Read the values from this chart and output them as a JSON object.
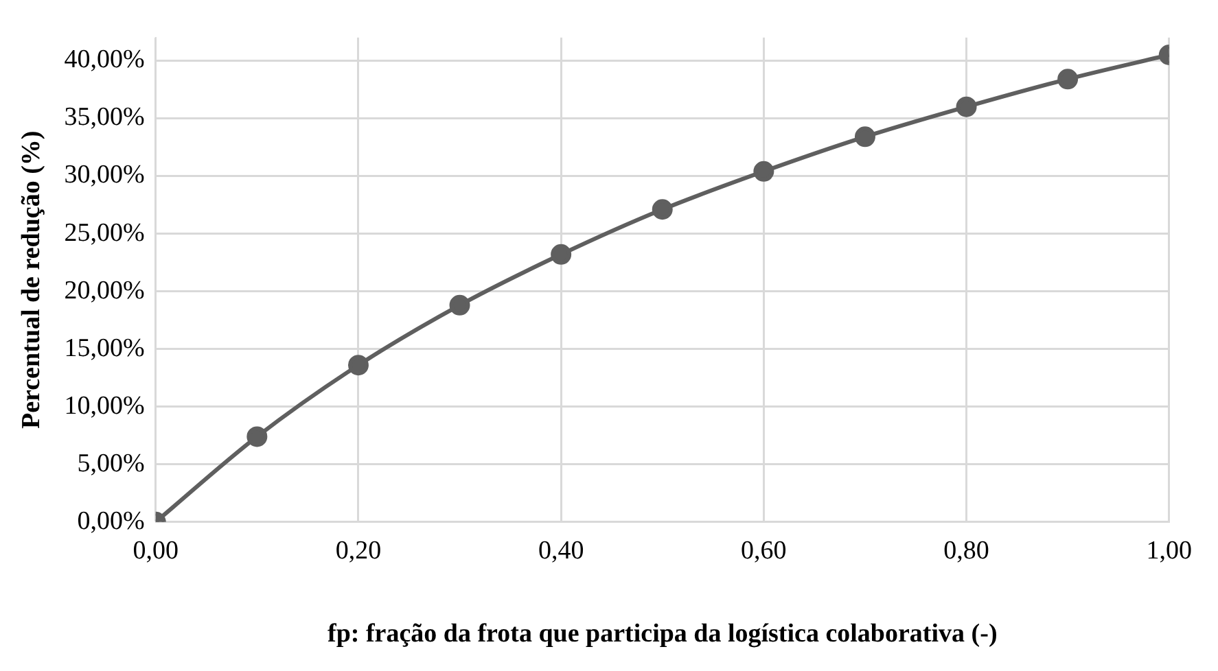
{
  "chart_data": {
    "type": "line",
    "xlabel": "fp: fração da frota que participa da logística colaborativa (-)",
    "ylabel": "Percentual de redução (%)",
    "x": [
      0,
      0.1,
      0.2,
      0.3,
      0.4,
      0.5,
      0.6,
      0.7,
      0.8,
      0.9,
      1
    ],
    "series": [
      {
        "color": "#5f5f5f",
        "values": [
          0,
          7.4,
          13.6,
          18.8,
          23.2,
          27.1,
          30.4,
          33.4,
          36.0,
          38.4,
          40.5
        ]
      }
    ],
    "xlim": [
      0,
      1
    ],
    "xticks": [
      {
        "value": 0,
        "label": "0,00"
      },
      {
        "value": 0.2,
        "label": "0,20"
      },
      {
        "value": 0.4,
        "label": "0,40"
      },
      {
        "value": 0.6,
        "label": "0,60"
      },
      {
        "value": 0.8,
        "label": "0,80"
      },
      {
        "value": 1,
        "label": "1,00"
      }
    ],
    "ylim": [
      0,
      42
    ],
    "yticks": [
      {
        "value": 0,
        "label": "0,00%"
      },
      {
        "value": 5,
        "label": "5,00%"
      },
      {
        "value": 10,
        "label": "10,00%"
      },
      {
        "value": 15,
        "label": "15,00%"
      },
      {
        "value": 20,
        "label": "20,00%"
      },
      {
        "value": 25,
        "label": "25,00%"
      },
      {
        "value": 30,
        "label": "30,00%"
      },
      {
        "value": 35,
        "label": "35,00%"
      },
      {
        "value": 40,
        "label": "40,00%"
      }
    ],
    "grid": true,
    "legend": false,
    "marker": "circle",
    "line_style": "solid"
  }
}
